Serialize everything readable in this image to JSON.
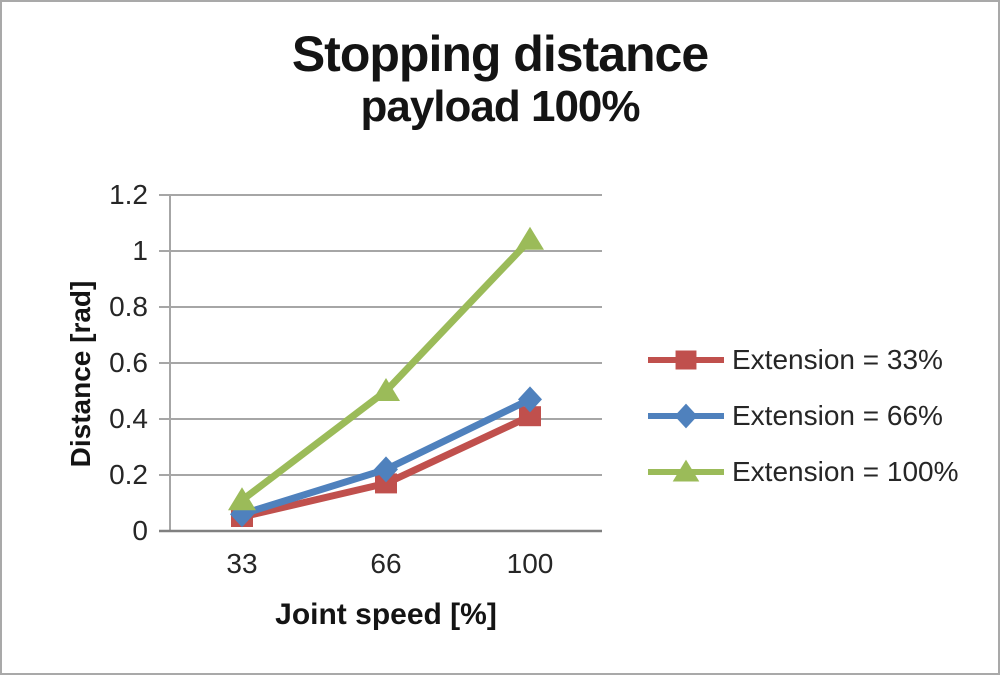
{
  "title": "Stopping distance",
  "subtitle": "payload 100%",
  "chart_data": {
    "type": "line",
    "categories": [
      33,
      66,
      100
    ],
    "xticklabels": [
      "33",
      "66",
      "100"
    ],
    "yticks": [
      0,
      0.2,
      0.4,
      0.6,
      0.8,
      1,
      1.2
    ],
    "yticklabels": [
      "0",
      "0.2",
      "0.4",
      "0.6",
      "0.8",
      "1",
      "1.2"
    ],
    "xlabel": "Joint speed [%]",
    "ylabel": "Distance [rad]",
    "ylim": [
      0,
      1.2
    ],
    "grid": true,
    "legend_position": "right",
    "grid_color": "#a6a6a6",
    "axis_color": "#808080",
    "series": [
      {
        "name": "Extension = 33%",
        "marker": "square",
        "color": "#c0504d",
        "values": [
          0.05,
          0.17,
          0.41
        ]
      },
      {
        "name": "Extension = 66%",
        "marker": "diamond",
        "color": "#4f81bd",
        "values": [
          0.06,
          0.22,
          0.47
        ]
      },
      {
        "name": "Extension = 100%",
        "marker": "triangle",
        "color": "#9bbb59",
        "values": [
          0.11,
          0.5,
          1.04
        ]
      }
    ]
  }
}
